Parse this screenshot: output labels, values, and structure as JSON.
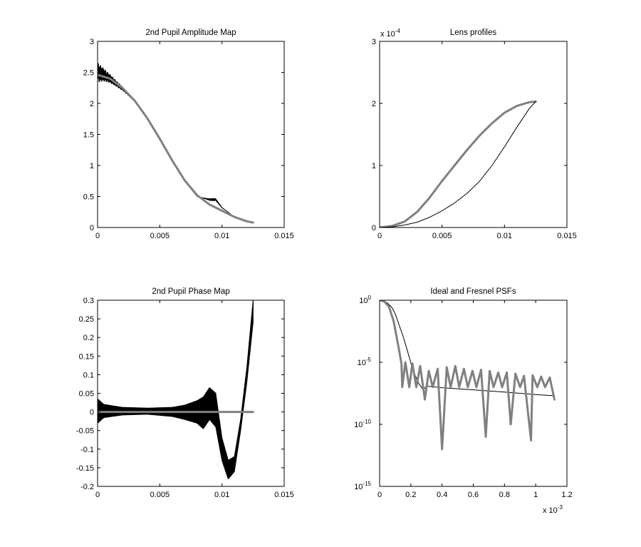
{
  "figure": {
    "background": "#ffffff",
    "colors": {
      "axes": "#000000",
      "black_series": "#000000",
      "gray_series": "#808080"
    }
  },
  "chart_data": [
    {
      "id": "amp",
      "type": "line",
      "title": "2nd Pupil Amplitude Map",
      "xlabel": "",
      "ylabel": "",
      "xlim": [
        0,
        0.015
      ],
      "ylim": [
        0,
        3
      ],
      "yscale": "linear",
      "x_ticks": [
        0,
        0.005,
        0.01,
        0.015
      ],
      "x_tick_labels": [
        "0",
        "0.005",
        "0.01",
        "0.015"
      ],
      "y_ticks": [
        0,
        0.5,
        1,
        1.5,
        2,
        2.5,
        3
      ],
      "y_tick_labels": [
        "0",
        "0.5",
        "1",
        "1.5",
        "2",
        "2.5",
        "3"
      ],
      "x_multiplier": "",
      "y_multiplier": "",
      "series": [
        {
          "color": "#000000",
          "style": "thin, strongly oscillating near r=0",
          "x": [
            0,
            0.0005,
            0.001,
            0.0015,
            0.002,
            0.003,
            0.004,
            0.005,
            0.006,
            0.007,
            0.008,
            0.009,
            0.0095,
            0.01,
            0.011,
            0.012,
            0.0125
          ],
          "y": [
            2.5,
            2.46,
            2.4,
            2.32,
            2.24,
            2.04,
            1.76,
            1.42,
            1.07,
            0.75,
            0.5,
            0.45,
            0.45,
            0.32,
            0.17,
            0.09,
            0.07
          ]
        },
        {
          "color": "#808080",
          "style": "thick smooth",
          "x": [
            0,
            0.001,
            0.002,
            0.003,
            0.004,
            0.005,
            0.006,
            0.007,
            0.008,
            0.009,
            0.01,
            0.011,
            0.012,
            0.0125
          ],
          "y": [
            2.46,
            2.4,
            2.25,
            2.04,
            1.76,
            1.43,
            1.08,
            0.76,
            0.52,
            0.37,
            0.27,
            0.17,
            0.1,
            0.08
          ]
        }
      ]
    },
    {
      "id": "lens",
      "type": "line",
      "title": "Lens profiles",
      "xlabel": "",
      "ylabel": "",
      "xlim": [
        0,
        0.015
      ],
      "ylim": [
        0,
        0.0003
      ],
      "yscale": "linear",
      "x_ticks": [
        0,
        0.005,
        0.01,
        0.015
      ],
      "x_tick_labels": [
        "0",
        "0.005",
        "0.01",
        "0.015"
      ],
      "y_ticks": [
        0,
        0.0001,
        0.0002,
        0.0003
      ],
      "y_tick_labels": [
        "0",
        "1",
        "2",
        "3"
      ],
      "x_multiplier": "",
      "y_multiplier": {
        "base": "x 10",
        "exponent": "-4"
      },
      "series": [
        {
          "color": "#808080",
          "style": "thick",
          "x": [
            0,
            0.001,
            0.002,
            0.003,
            0.004,
            0.005,
            0.006,
            0.007,
            0.008,
            0.009,
            0.01,
            0.011,
            0.012,
            0.0125
          ],
          "y": [
            0,
            2.5e-06,
            9.5e-06,
            2.5e-05,
            4.8e-05,
            7.5e-05,
            0.0001,
            0.000125,
            0.000148,
            0.000168,
            0.000185,
            0.000196,
            0.000202,
            0.000203
          ]
        },
        {
          "color": "#000000",
          "style": "thin",
          "x": [
            0,
            0.001,
            0.002,
            0.003,
            0.004,
            0.005,
            0.006,
            0.007,
            0.008,
            0.009,
            0.01,
            0.011,
            0.012,
            0.0125
          ],
          "y": [
            0,
            1e-06,
            4e-06,
            8.5e-06,
            1.65e-05,
            2.7e-05,
            3.95e-05,
            5.5e-05,
            7.45e-05,
            0.0001,
            0.00013,
            0.000162,
            0.000192,
            0.000203
          ]
        }
      ]
    },
    {
      "id": "phase",
      "type": "line",
      "title": "2nd Pupil Phase Map",
      "xlabel": "",
      "ylabel": "",
      "xlim": [
        0,
        0.015
      ],
      "ylim": [
        -0.2,
        0.3
      ],
      "yscale": "linear",
      "x_ticks": [
        0,
        0.005,
        0.01,
        0.015
      ],
      "x_tick_labels": [
        "0",
        "0.005",
        "0.01",
        "0.015"
      ],
      "y_ticks": [
        -0.2,
        -0.15,
        -0.1,
        -0.05,
        0,
        0.05,
        0.1,
        0.15,
        0.2,
        0.25,
        0.3
      ],
      "y_tick_labels": [
        "-0.2",
        "-0.15",
        "-0.1",
        "-0.05",
        "0",
        "0.05",
        "0.1",
        "0.15",
        "0.2",
        "0.25",
        "0.3"
      ],
      "x_multiplier": "",
      "y_multiplier": "",
      "series": [
        {
          "color": "#000000",
          "style": "oscillating band (envelope shown)",
          "x": [
            0,
            0.0005,
            0.002,
            0.004,
            0.006,
            0.007,
            0.008,
            0.0085,
            0.009,
            0.0095,
            0.01,
            0.0105,
            0.011,
            0.0115,
            0.012,
            0.0125
          ],
          "upper": [
            0.035,
            0.02,
            0.012,
            0.01,
            0.012,
            0.018,
            0.03,
            0.04,
            0.065,
            0.05,
            -0.07,
            -0.13,
            -0.12,
            -0.02,
            0.12,
            0.3
          ],
          "lower": [
            -0.03,
            -0.015,
            -0.008,
            -0.006,
            -0.012,
            -0.02,
            -0.03,
            -0.045,
            -0.02,
            -0.04,
            -0.13,
            -0.18,
            -0.16,
            -0.05,
            0.08,
            0.24
          ]
        },
        {
          "color": "#808080",
          "style": "thick flat line",
          "x": [
            0,
            0.0125
          ],
          "y": [
            0,
            0
          ]
        }
      ]
    },
    {
      "id": "psf",
      "type": "line",
      "title": "Ideal and Fresnel PSFs",
      "xlabel": "",
      "ylabel": "",
      "xlim": [
        0,
        0.0012
      ],
      "ylim": [
        1e-15,
        1
      ],
      "yscale": "log",
      "x_ticks": [
        0,
        0.0002,
        0.0004,
        0.0006,
        0.0008,
        0.001,
        0.0012
      ],
      "x_tick_labels": [
        "0",
        "0.2",
        "0.4",
        "0.6",
        "0.8",
        "1",
        "1.2"
      ],
      "y_ticks": [
        1,
        1e-05,
        1e-10,
        1e-15
      ],
      "y_tick_labels": [
        {
          "base": "10",
          "exponent": "0"
        },
        {
          "base": "10",
          "exponent": "-5"
        },
        {
          "base": "10",
          "exponent": "-10"
        },
        {
          "base": "10",
          "exponent": "-15"
        }
      ],
      "x_multiplier": {
        "base": "x 10",
        "exponent": "-3"
      },
      "y_multiplier": "",
      "series": [
        {
          "color": "#000000",
          "style": "thin smooth",
          "x": [
            0,
            2e-05,
            5e-05,
            8e-05,
            0.0001,
            0.00012,
            0.00015,
            0.00018,
            0.0002,
            0.00022,
            0.00025,
            0.00028,
            0.0003,
            0.0004,
            0.0006,
            0.0008,
            0.001,
            0.00112
          ],
          "y": [
            1,
            0.9,
            0.6,
            0.25,
            0.08,
            0.015,
            0.0013,
            7e-05,
            9e-06,
            1.5e-06,
            2e-07,
            6e-08,
            1.2e-07,
            9e-08,
            6e-08,
            4e-08,
            2.5e-08,
            2e-08
          ]
        },
        {
          "color": "#808080",
          "style": "thick, main lobe then sidelobes with deep nulls",
          "x": [
            0,
            3e-05,
            6e-05,
            9e-05,
            0.00012,
            0.00014
          ],
          "y": [
            1,
            0.8,
            0.3,
            0.02,
            0.0002,
            8e-06
          ],
          "sidelobe_peaks": {
            "x": [
              0.000165,
              0.00021,
              0.00026,
              0.000315,
              0.000372,
              0.00043,
              0.000485,
              0.00054,
              0.000595,
              0.00065,
              0.000705,
              0.00076,
              0.000815,
              0.00087,
              0.000925,
              0.00098,
              0.001035,
              0.00109
            ],
            "y": [
              1e-05,
              8e-06,
              5e-06,
              2e-06,
              3e-06,
              4e-06,
              5e-06,
              3e-06,
              2e-06,
              2.5e-06,
              2e-06,
              1.5e-06,
              1.5e-06,
              1.2e-06,
              8e-07,
              9e-07,
              7e-07,
              6e-07
            ]
          },
          "nulls": {
            "x": [
              0.000145,
              0.00019,
              0.000235,
              0.00029,
              0.00034,
              0.0004,
              0.000455,
              0.00051,
              0.000565,
              0.00062,
              0.00068,
              0.00073,
              0.000785,
              0.00084,
              0.0009,
              0.00097,
              0.00101,
              0.00106,
              0.00112
            ],
            "y": [
              1e-07,
              1e-07,
              1e-07,
              1e-08,
              1e-07,
              1e-12,
              1e-07,
              1e-07,
              1e-07,
              1e-07,
              1e-11,
              1e-07,
              1e-07,
              1e-10,
              1e-07,
              5e-12,
              1e-07,
              1e-07,
              1e-08
            ]
          }
        }
      ]
    }
  ]
}
